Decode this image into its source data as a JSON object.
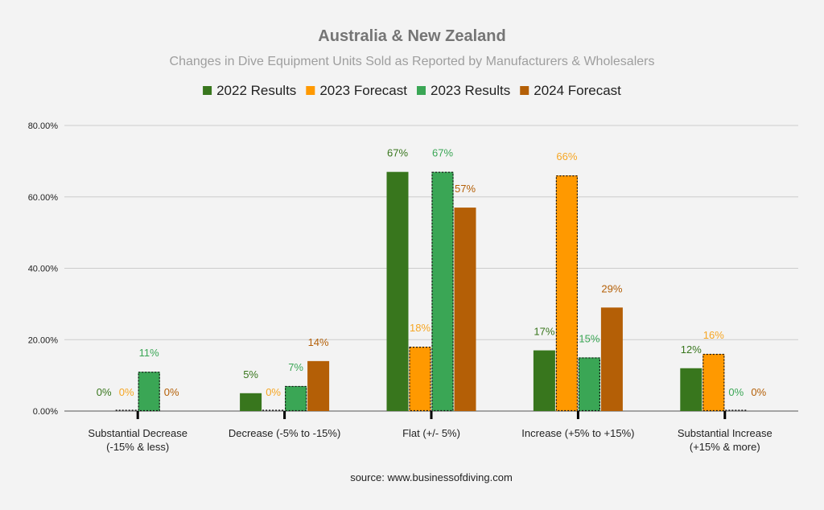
{
  "chart_data": {
    "type": "bar",
    "title": "Australia & New Zealand",
    "subtitle": "Changes in Dive Equipment Units Sold as Reported by Manufacturers & Wholesalers",
    "source": "source: www.businessofdiving.com",
    "legend_position": "top",
    "grid": true,
    "ylim": [
      0,
      80
    ],
    "yticks": [
      "0.00%",
      "20.00%",
      "40.00%",
      "60.00%",
      "80.00%"
    ],
    "categories": [
      [
        "Substantial Decrease",
        "(-15% & less)"
      ],
      [
        "Decrease (-5% to -15%)"
      ],
      [
        "Flat (+/- 5%)"
      ],
      [
        "Increase (+5% to +15%)"
      ],
      [
        "Substantial Increase",
        "(+15% & more)"
      ]
    ],
    "series": [
      {
        "name": "2022 Results",
        "color": "#38761d",
        "label_color": "#38761d",
        "dotted": false,
        "values": [
          0,
          5,
          67,
          17,
          12
        ],
        "labels": [
          "0%",
          "5%",
          "67%",
          "17%",
          "12%"
        ]
      },
      {
        "name": "2023 Forecast",
        "color": "#ff9900",
        "label_color": "#f6a623",
        "dotted": true,
        "values": [
          0,
          0,
          18,
          66,
          16
        ],
        "labels": [
          "0%",
          "0%",
          "18%",
          "66%",
          "16%"
        ]
      },
      {
        "name": "2023 Results",
        "color": "#3aa655",
        "label_color": "#3aa655",
        "dotted": true,
        "values": [
          11,
          7,
          67,
          15,
          0
        ],
        "labels": [
          "11%",
          "7%",
          "67%",
          "15%",
          "0%"
        ]
      },
      {
        "name": "2024 Forecast",
        "color": "#b45f06",
        "label_color": "#b45f06",
        "dotted": false,
        "values": [
          0,
          14,
          57,
          29,
          0
        ],
        "labels": [
          "0%",
          "14%",
          "57%",
          "29%",
          "0%"
        ]
      }
    ]
  }
}
